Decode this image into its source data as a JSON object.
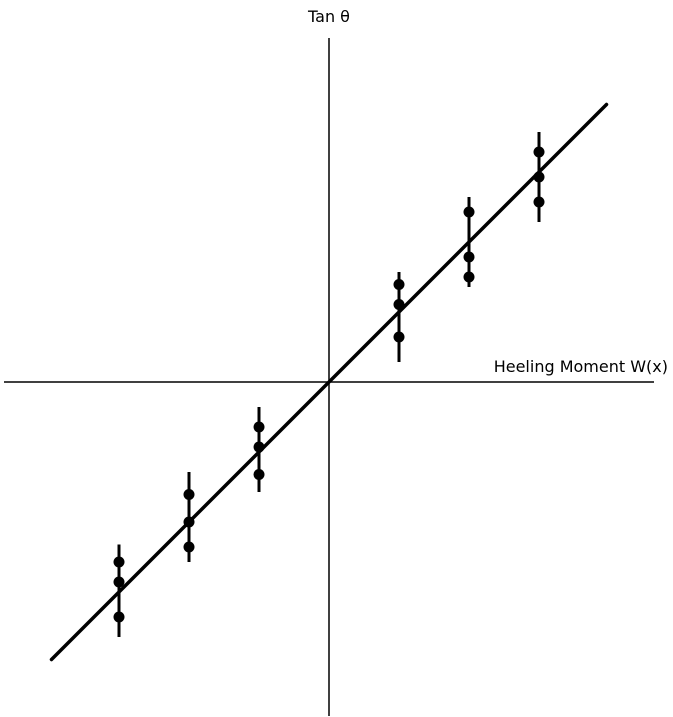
{
  "chart_data": {
    "type": "scatter",
    "title": "",
    "xlabel": "Heeling Moment W(x)",
    "ylabel": "Tan θ",
    "xlim": [
      -6.5,
      6.5
    ],
    "ylim": [
      -7,
      7
    ],
    "grid": false,
    "legend": "none",
    "colors": {
      "axes": "#000000",
      "points": "#000000",
      "fit_line": "#000000"
    },
    "fit_line": {
      "x": [
        -5.55,
        5.55
      ],
      "y": [
        -5.55,
        5.55
      ]
    },
    "groups": [
      {
        "x": -4.2,
        "points": [
          -3.6,
          -4.0,
          -4.7
        ],
        "error_bar": [
          -3.25,
          -5.1
        ]
      },
      {
        "x": -2.8,
        "points": [
          -2.25,
          -2.8,
          -3.3
        ],
        "error_bar": [
          -1.8,
          -3.6
        ]
      },
      {
        "x": -1.4,
        "points": [
          -0.9,
          -1.3,
          -1.85
        ],
        "error_bar": [
          -0.5,
          -2.2
        ]
      },
      {
        "x": 1.4,
        "points": [
          1.95,
          1.55,
          0.9
        ],
        "error_bar": [
          2.2,
          0.4
        ]
      },
      {
        "x": 2.8,
        "points": [
          3.4,
          2.5,
          2.1
        ],
        "error_bar": [
          3.7,
          1.9
        ]
      },
      {
        "x": 4.2,
        "points": [
          4.6,
          4.1,
          3.6
        ],
        "error_bar": [
          5.0,
          3.2
        ]
      }
    ]
  }
}
